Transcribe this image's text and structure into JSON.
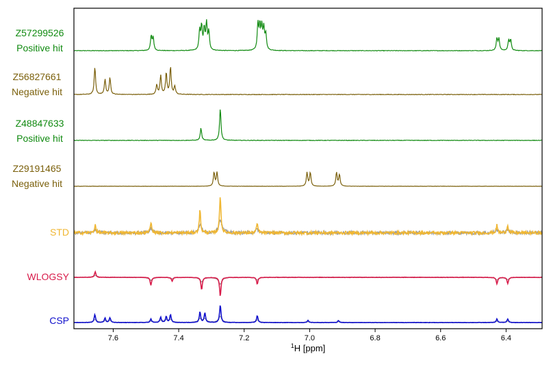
{
  "chart_data": {
    "type": "line",
    "title": "",
    "xlabel": "1H [ppm]",
    "xlabel_parts": {
      "sup": "1",
      "main": "H [ppm]"
    },
    "xlim": [
      7.72,
      6.29
    ],
    "x_reversed": true,
    "x_ticks": [
      {
        "value": 7.6,
        "label": "7.6"
      },
      {
        "value": 7.4,
        "label": "7.4"
      },
      {
        "value": 7.2,
        "label": "7.2"
      },
      {
        "value": 7.0,
        "label": "7.0"
      },
      {
        "value": 6.8,
        "label": "6.8"
      },
      {
        "value": 6.6,
        "label": "6.6"
      },
      {
        "value": 6.4,
        "label": "6.4"
      }
    ],
    "grid": false,
    "series": [
      {
        "name_lines": [
          "Z57299526",
          "Positive hit"
        ],
        "color": "#108a10",
        "noise": 0.01,
        "peaks": [
          {
            "ppm": 7.484,
            "height": 0.55
          },
          {
            "ppm": 7.478,
            "height": 0.5
          },
          {
            "ppm": 7.336,
            "height": 0.75
          },
          {
            "ppm": 7.33,
            "height": 0.9
          },
          {
            "ppm": 7.322,
            "height": 0.8
          },
          {
            "ppm": 7.315,
            "height": 1.0
          },
          {
            "ppm": 7.308,
            "height": 0.7
          },
          {
            "ppm": 7.158,
            "height": 1.0
          },
          {
            "ppm": 7.152,
            "height": 0.9
          },
          {
            "ppm": 7.146,
            "height": 0.85
          },
          {
            "ppm": 7.14,
            "height": 0.8
          },
          {
            "ppm": 7.134,
            "height": 0.6
          },
          {
            "ppm": 6.428,
            "height": 0.45
          },
          {
            "ppm": 6.422,
            "height": 0.45
          },
          {
            "ppm": 6.392,
            "height": 0.4
          },
          {
            "ppm": 6.386,
            "height": 0.4
          }
        ]
      },
      {
        "name_lines": [
          "Z56827661",
          "Negative hit"
        ],
        "color": "#7a5f0a",
        "noise": 0.01,
        "peaks": [
          {
            "ppm": 7.656,
            "height": 1.0
          },
          {
            "ppm": 7.625,
            "height": 0.55
          },
          {
            "ppm": 7.61,
            "height": 0.62
          },
          {
            "ppm": 7.467,
            "height": 0.35
          },
          {
            "ppm": 7.455,
            "height": 0.7
          },
          {
            "ppm": 7.438,
            "height": 0.78
          },
          {
            "ppm": 7.425,
            "height": 1.0
          },
          {
            "ppm": 7.412,
            "height": 0.3
          }
        ]
      },
      {
        "name_lines": [
          "Z48847633",
          "Positive hit"
        ],
        "color": "#108a10",
        "noise": 0.008,
        "peaks": [
          {
            "ppm": 7.332,
            "height": 0.38
          },
          {
            "ppm": 7.273,
            "height": 1.0
          }
        ]
      },
      {
        "name_lines": [
          "Z29191465",
          "Negative hit"
        ],
        "color": "#7a5f0a",
        "noise": 0.008,
        "peaks": [
          {
            "ppm": 7.292,
            "height": 0.95
          },
          {
            "ppm": 7.283,
            "height": 0.95
          },
          {
            "ppm": 7.008,
            "height": 0.95
          },
          {
            "ppm": 6.998,
            "height": 0.95
          },
          {
            "ppm": 6.918,
            "height": 0.95
          },
          {
            "ppm": 6.909,
            "height": 0.8
          }
        ]
      },
      {
        "name_lines": [
          "STD"
        ],
        "color": "#f0b733",
        "reference_color": "#999999",
        "noise": 0.04,
        "peaks": [
          {
            "ppm": 7.655,
            "height": 0.22
          },
          {
            "ppm": 7.485,
            "height": 0.3
          },
          {
            "ppm": 7.335,
            "height": 0.6
          },
          {
            "ppm": 7.273,
            "height": 1.0
          },
          {
            "ppm": 7.16,
            "height": 0.25
          },
          {
            "ppm": 6.428,
            "height": 0.2
          },
          {
            "ppm": 6.395,
            "height": 0.22
          }
        ]
      },
      {
        "name_lines": [
          "WLOGSY"
        ],
        "color": "#d81b4a",
        "reference_color": "#999999",
        "noise": 0.01,
        "peaks": [
          {
            "ppm": 7.655,
            "height": 0.3
          },
          {
            "ppm": 7.485,
            "height": -0.42
          },
          {
            "ppm": 7.42,
            "height": -0.2
          },
          {
            "ppm": 7.33,
            "height": -0.65
          },
          {
            "ppm": 7.273,
            "height": -1.0
          },
          {
            "ppm": 7.16,
            "height": -0.35
          },
          {
            "ppm": 6.428,
            "height": -0.35
          },
          {
            "ppm": 6.395,
            "height": -0.32
          }
        ]
      },
      {
        "name_lines": [
          "CSP"
        ],
        "color": "#1010cc",
        "reference_color": "#999999",
        "noise": 0.01,
        "peaks": [
          {
            "ppm": 7.656,
            "height": 0.45
          },
          {
            "ppm": 7.625,
            "height": 0.25
          },
          {
            "ppm": 7.61,
            "height": 0.28
          },
          {
            "ppm": 7.485,
            "height": 0.2
          },
          {
            "ppm": 7.455,
            "height": 0.3
          },
          {
            "ppm": 7.438,
            "height": 0.35
          },
          {
            "ppm": 7.425,
            "height": 0.45
          },
          {
            "ppm": 7.335,
            "height": 0.6
          },
          {
            "ppm": 7.32,
            "height": 0.55
          },
          {
            "ppm": 7.273,
            "height": 1.0
          },
          {
            "ppm": 7.16,
            "height": 0.4
          },
          {
            "ppm": 7.005,
            "height": 0.12
          },
          {
            "ppm": 6.912,
            "height": 0.12
          },
          {
            "ppm": 6.428,
            "height": 0.2
          },
          {
            "ppm": 6.395,
            "height": 0.2
          }
        ]
      }
    ]
  }
}
